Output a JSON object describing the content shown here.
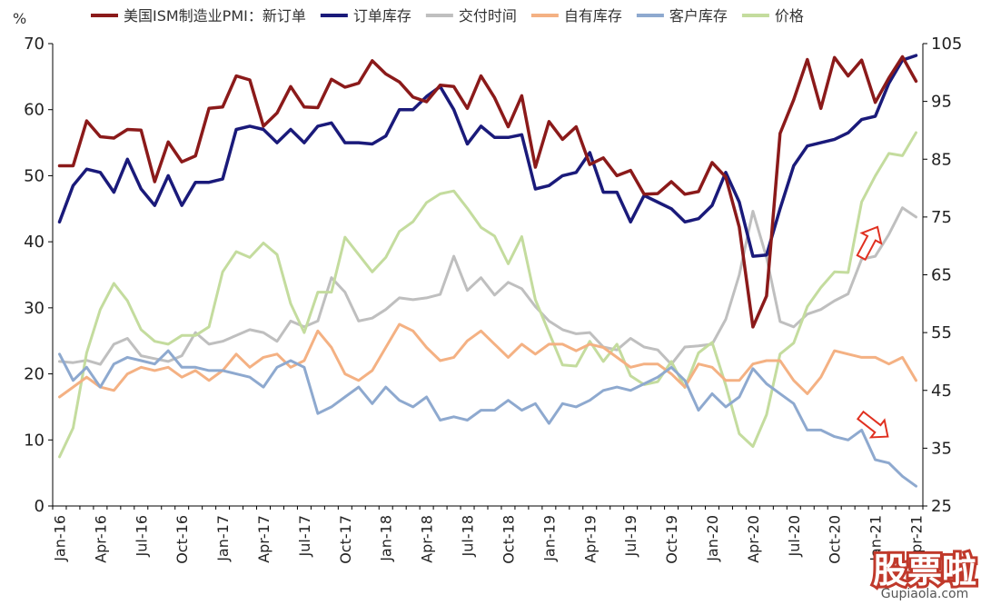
{
  "chart_data": {
    "type": "line",
    "ylabel": "%",
    "ylim_left": [
      0,
      70
    ],
    "yticks_left": [
      "0",
      "10",
      "20",
      "30",
      "40",
      "50",
      "60",
      "70"
    ],
    "ylim_right": [
      25,
      105
    ],
    "yticks_right": [
      "25",
      "35",
      "45",
      "55",
      "65",
      "75",
      "85",
      "95",
      "105"
    ],
    "grid": false,
    "legend_position": "top",
    "x": [
      "Jan-16",
      "Feb-16",
      "Mar-16",
      "Apr-16",
      "May-16",
      "Jun-16",
      "Jul-16",
      "Aug-16",
      "Sep-16",
      "Oct-16",
      "Nov-16",
      "Dec-16",
      "Jan-17",
      "Feb-17",
      "Mar-17",
      "Apr-17",
      "May-17",
      "Jun-17",
      "Jul-17",
      "Aug-17",
      "Sep-17",
      "Oct-17",
      "Nov-17",
      "Dec-17",
      "Jan-18",
      "Feb-18",
      "Mar-18",
      "Apr-18",
      "May-18",
      "Jun-18",
      "Jul-18",
      "Aug-18",
      "Sep-18",
      "Oct-18",
      "Nov-18",
      "Dec-18",
      "Jan-19",
      "Feb-19",
      "Mar-19",
      "Apr-19",
      "May-19",
      "Jun-19",
      "Jul-19",
      "Aug-19",
      "Sep-19",
      "Oct-19",
      "Nov-19",
      "Dec-19",
      "Jan-20",
      "Feb-20",
      "Mar-20",
      "Apr-20",
      "May-20",
      "Jun-20",
      "Jul-20",
      "Aug-20",
      "Sep-20",
      "Oct-20",
      "Nov-20",
      "Dec-20",
      "Jan-21",
      "Feb-21",
      "Mar-21",
      "Apr-21"
    ],
    "x_tick_labels": [
      "Jan-16",
      "Apr-16",
      "Jul-16",
      "Oct-16",
      "Jan-17",
      "Apr-17",
      "Jul-17",
      "Oct-17",
      "Jan-18",
      "Apr-18",
      "Jul-18",
      "Oct-18",
      "Jan-19",
      "Apr-19",
      "Jul-19",
      "Oct-19",
      "Jan-20",
      "Apr-20",
      "Jul-20",
      "Oct-20",
      "Jan-21",
      "Apr-21"
    ],
    "series": [
      {
        "name": "美国ISM制造业PMI：新订单",
        "axis": "left",
        "color": "#8B1A1A",
        "width": 3.5,
        "values": [
          51.5,
          51.5,
          58.3,
          55.9,
          55.7,
          57.0,
          56.9,
          49.1,
          55.1,
          52.1,
          53.0,
          60.2,
          60.4,
          65.1,
          64.5,
          57.5,
          59.5,
          63.5,
          60.4,
          60.3,
          64.6,
          63.4,
          64.0,
          67.4,
          65.4,
          64.2,
          61.9,
          61.2,
          63.7,
          63.5,
          60.2,
          65.1,
          61.8,
          57.4,
          62.1,
          51.3,
          58.2,
          55.5,
          57.4,
          51.7,
          52.7,
          50.0,
          50.8,
          47.2,
          47.3,
          49.1,
          47.2,
          47.6,
          52.0,
          49.8,
          42.2,
          27.1,
          31.8,
          56.4,
          61.5,
          67.6,
          60.2,
          67.9,
          65.1,
          67.5,
          61.1,
          64.8,
          68.0,
          64.3
        ]
      },
      {
        "name": "订单库存",
        "axis": "left",
        "color": "#1A1A7A",
        "width": 3.5,
        "values": [
          43.0,
          48.5,
          51.0,
          50.5,
          47.5,
          52.5,
          48.0,
          45.5,
          50.0,
          45.5,
          49.0,
          49.0,
          49.5,
          57.0,
          57.5,
          57.0,
          55.0,
          57.0,
          55.0,
          57.5,
          58.0,
          55.0,
          55.0,
          54.8,
          56.0,
          60.0,
          60.0,
          62.0,
          63.5,
          60.0,
          54.8,
          57.5,
          55.8,
          55.8,
          56.2,
          48.0,
          48.5,
          50.0,
          50.5,
          53.5,
          47.5,
          47.5,
          43.0,
          47.0,
          46.0,
          45.0,
          43.0,
          43.5,
          45.5,
          50.5,
          46.0,
          37.8,
          38.0,
          45.0,
          51.5,
          54.5,
          55.0,
          55.5,
          56.5,
          58.5,
          59.0,
          64.0,
          67.5,
          68.2
        ]
      },
      {
        "name": "交付时间",
        "axis": "right",
        "color": "#BFBFBF",
        "width": 3,
        "values": [
          50.0,
          49.8,
          50.2,
          49.5,
          53.0,
          54.0,
          51.0,
          50.5,
          50.0,
          51.0,
          55.0,
          53.0,
          53.5,
          54.5,
          55.5,
          55.0,
          53.5,
          57.0,
          56.0,
          57.0,
          64.5,
          62.0,
          57.0,
          57.5,
          59.0,
          61.0,
          60.7,
          61.0,
          61.6,
          68.2,
          62.3,
          64.5,
          61.5,
          63.7,
          62.6,
          59.5,
          57.0,
          55.5,
          54.8,
          55.0,
          52.5,
          52.0,
          54.0,
          52.5,
          52.0,
          49.5,
          52.5,
          52.7,
          53.0,
          57.3,
          65.0,
          76.0,
          68.0,
          56.9,
          56.0,
          58.2,
          59.0,
          60.5,
          61.7,
          67.7,
          68.2,
          72.0,
          76.6,
          75.0
        ]
      },
      {
        "name": "自有库存",
        "axis": "left",
        "color": "#F4B183",
        "width": 3,
        "values": [
          16.5,
          18.0,
          19.5,
          18.0,
          17.5,
          20.0,
          21.0,
          20.5,
          21.0,
          19.5,
          20.5,
          19.0,
          20.5,
          23.0,
          21.0,
          22.5,
          23.0,
          21.0,
          22.0,
          26.5,
          24.0,
          20.0,
          19.0,
          20.5,
          24.0,
          27.5,
          26.5,
          24.0,
          22.0,
          22.5,
          25.0,
          26.5,
          24.5,
          22.5,
          24.5,
          23.0,
          24.5,
          24.5,
          23.5,
          24.5,
          24.0,
          22.5,
          21.0,
          21.5,
          21.5,
          20.0,
          18.0,
          21.5,
          21.0,
          19.0,
          19.0,
          21.5,
          22.0,
          22.0,
          19.0,
          17.0,
          19.5,
          23.5,
          23.0,
          22.5,
          22.5,
          21.5,
          22.5,
          19.0
        ]
      },
      {
        "name": "客户库存",
        "axis": "left",
        "color": "#8EA9CF",
        "width": 3,
        "values": [
          23.0,
          19.0,
          21.0,
          18.0,
          21.5,
          22.5,
          22.0,
          21.5,
          23.5,
          21.0,
          21.0,
          20.5,
          20.5,
          20.0,
          19.5,
          18.0,
          21.0,
          22.0,
          21.0,
          14.0,
          15.0,
          16.5,
          18.0,
          15.5,
          18.0,
          16.0,
          15.0,
          16.5,
          13.0,
          13.5,
          13.0,
          14.5,
          14.5,
          16.0,
          14.5,
          15.5,
          12.5,
          15.5,
          15.0,
          16.0,
          17.5,
          18.0,
          17.5,
          18.5,
          19.5,
          21.0,
          19.0,
          14.5,
          17.0,
          15.0,
          16.5,
          20.8,
          18.5,
          17.0,
          15.5,
          11.5,
          11.5,
          10.5,
          10.0,
          11.5,
          7.0,
          6.5,
          4.5,
          3.0
        ]
      },
      {
        "name": "价格",
        "axis": "right",
        "color": "#C4DC9E",
        "width": 3,
        "values": [
          33.5,
          38.5,
          51.5,
          59.0,
          63.5,
          60.5,
          55.5,
          53.5,
          53.0,
          54.5,
          54.5,
          56.0,
          65.5,
          69.0,
          68.0,
          70.5,
          68.5,
          60.0,
          55.0,
          62.0,
          62.0,
          71.5,
          68.5,
          65.5,
          68.0,
          72.5,
          74.2,
          77.5,
          79.0,
          79.5,
          76.5,
          73.2,
          71.7,
          66.9,
          71.6,
          60.7,
          55.0,
          49.4,
          49.2,
          53.5,
          50.0,
          53.0,
          47.5,
          46.0,
          46.5,
          50.0,
          45.5,
          51.5,
          53.3,
          45.9,
          37.5,
          35.3,
          40.8,
          51.3,
          53.2,
          59.5,
          62.8,
          65.5,
          65.4,
          77.6,
          82.1,
          86.0,
          85.6,
          89.6
        ]
      }
    ],
    "annotations": [
      {
        "type": "arrow",
        "direction": "up",
        "color": "#E03020",
        "near": "value 74.6 on the right axis, Mar-21"
      },
      {
        "type": "arrow",
        "direction": "down",
        "color": "#E03020",
        "near": "value 12 on the left axis, Feb-21"
      }
    ]
  },
  "watermark": {
    "text": "股票啦",
    "subtext": "Gupiaola.com"
  }
}
